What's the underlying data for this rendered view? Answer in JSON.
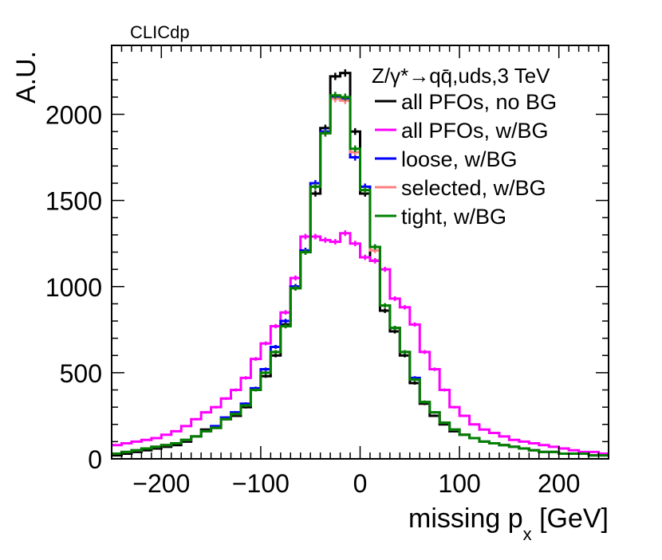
{
  "chart_data": {
    "type": "line",
    "title": "",
    "experiment_label": "CLICdp",
    "process_label": "Z/γ*→qq̄,uds,3 TeV",
    "xlabel": "missing p",
    "xlabel_sub": "x",
    "xlabel_unit": " [GeV]",
    "ylabel": "A.U.",
    "xlim": [
      -250,
      250
    ],
    "ylim": [
      0,
      2400
    ],
    "bin_width": 10,
    "x_ticks": [
      -200,
      -100,
      0,
      100,
      200
    ],
    "x_tick_labels": [
      "−200",
      "−100",
      "0",
      "100",
      "200"
    ],
    "y_ticks": [
      0,
      500,
      1000,
      1500,
      2000
    ],
    "y_tick_labels": [
      "0",
      "500",
      "1000",
      "1500",
      "2000"
    ],
    "grid": false,
    "legend_position": "top-right",
    "bin_edges_start": -250,
    "series": [
      {
        "name": "all PFOs, no BG",
        "color": "#000000",
        "values": [
          20,
          30,
          40,
          50,
          60,
          70,
          80,
          100,
          130,
          170,
          180,
          230,
          250,
          300,
          400,
          480,
          600,
          780,
          1000,
          1200,
          1540,
          1920,
          2220,
          2240,
          1900,
          1540,
          1150,
          860,
          740,
          600,
          440,
          320,
          250,
          200,
          160,
          140,
          120,
          100,
          90,
          80,
          70,
          60,
          50,
          40,
          40,
          30,
          30,
          30,
          20,
          20
        ]
      },
      {
        "name": "all PFOs, w/BG",
        "color": "#ff00ff",
        "values": [
          80,
          90,
          100,
          110,
          120,
          140,
          160,
          190,
          230,
          270,
          300,
          350,
          400,
          470,
          580,
          670,
          770,
          850,
          1050,
          1290,
          1290,
          1270,
          1260,
          1310,
          1250,
          1170,
          1150,
          1100,
          930,
          880,
          780,
          620,
          520,
          400,
          300,
          250,
          200,
          170,
          150,
          130,
          110,
          100,
          90,
          80,
          70,
          60,
          50,
          40,
          40,
          30
        ]
      },
      {
        "name": "loose, w/BG",
        "color": "#0000ff",
        "values": [
          30,
          40,
          50,
          60,
          70,
          80,
          90,
          110,
          130,
          160,
          190,
          240,
          270,
          320,
          410,
          520,
          650,
          800,
          1000,
          1210,
          1600,
          1900,
          2100,
          2090,
          1750,
          1580,
          1230,
          890,
          760,
          620,
          470,
          330,
          270,
          210,
          170,
          140,
          120,
          100,
          90,
          80,
          70,
          60,
          50,
          40,
          40,
          30,
          30,
          30,
          20,
          20
        ]
      },
      {
        "name": "selected, w/BG",
        "color": "#ff7f7f",
        "values": [
          30,
          40,
          50,
          60,
          70,
          80,
          90,
          110,
          130,
          160,
          180,
          230,
          260,
          310,
          400,
          500,
          620,
          770,
          990,
          1200,
          1580,
          1890,
          2090,
          2080,
          1780,
          1560,
          1210,
          890,
          760,
          620,
          460,
          330,
          270,
          210,
          170,
          140,
          120,
          100,
          90,
          80,
          70,
          60,
          50,
          40,
          40,
          30,
          30,
          30,
          20,
          20
        ]
      },
      {
        "name": "tight, w/BG",
        "color": "#008000",
        "values": [
          30,
          40,
          50,
          60,
          70,
          80,
          90,
          110,
          130,
          160,
          180,
          230,
          260,
          310,
          400,
          500,
          620,
          770,
          990,
          1200,
          1580,
          1890,
          2110,
          2100,
          1800,
          1560,
          1230,
          890,
          760,
          620,
          460,
          330,
          270,
          210,
          170,
          140,
          120,
          100,
          90,
          80,
          70,
          60,
          50,
          40,
          40,
          30,
          30,
          30,
          20,
          20
        ]
      }
    ]
  }
}
